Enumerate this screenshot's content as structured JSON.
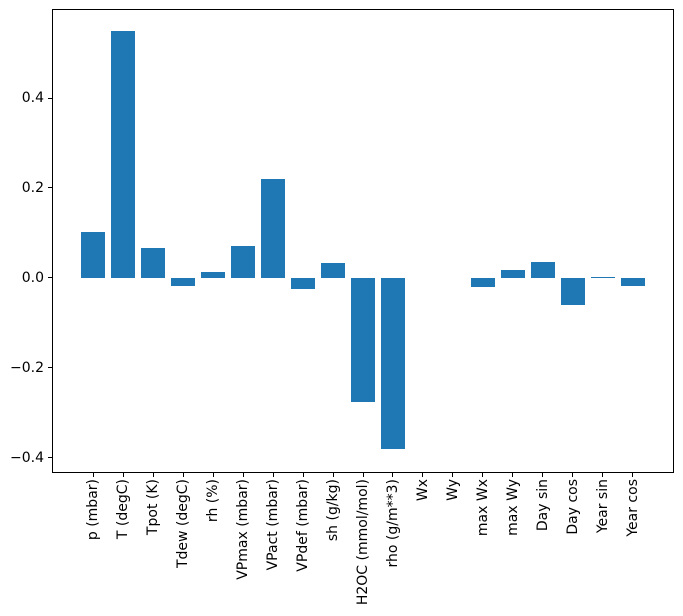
{
  "figure": {
    "background": "#ffffff"
  },
  "chart_data": {
    "type": "bar",
    "title": "",
    "xlabel": "",
    "ylabel": "",
    "categories": [
      "p (mbar)",
      "T (degC)",
      "Tpot (K)",
      "Tdew (degC)",
      "rh (%)",
      "VPmax (mbar)",
      "VPact (mbar)",
      "VPdef (mbar)",
      "sh (g/kg)",
      "H2OC (mmol/mol)",
      "rho (g/m**3)",
      "Wx",
      "Wy",
      "max Wx",
      "max Wy",
      "Day sin",
      "Day cos",
      "Year sin",
      "Year cos"
    ],
    "values": [
      0.102,
      0.55,
      0.066,
      -0.018,
      0.014,
      0.07,
      0.22,
      -0.025,
      0.034,
      -0.276,
      -0.381,
      0.0,
      0.0,
      -0.02,
      0.018,
      0.035,
      -0.06,
      0.003,
      -0.019
    ],
    "y_ticks": [
      {
        "value": 0.4,
        "label": "0.4"
      },
      {
        "value": 0.2,
        "label": "0.2"
      },
      {
        "value": 0.0,
        "label": "0.0"
      },
      {
        "value": -0.2,
        "label": "−0.2"
      },
      {
        "value": -0.4,
        "label": "−0.4"
      }
    ],
    "ylim": [
      -0.432,
      0.596
    ],
    "xlim": [
      -1.34,
      19.34
    ],
    "bar_width": 0.8,
    "bar_color": "#1f77b4",
    "axis_color": "#000000",
    "grid": false,
    "legend_position": "none"
  }
}
